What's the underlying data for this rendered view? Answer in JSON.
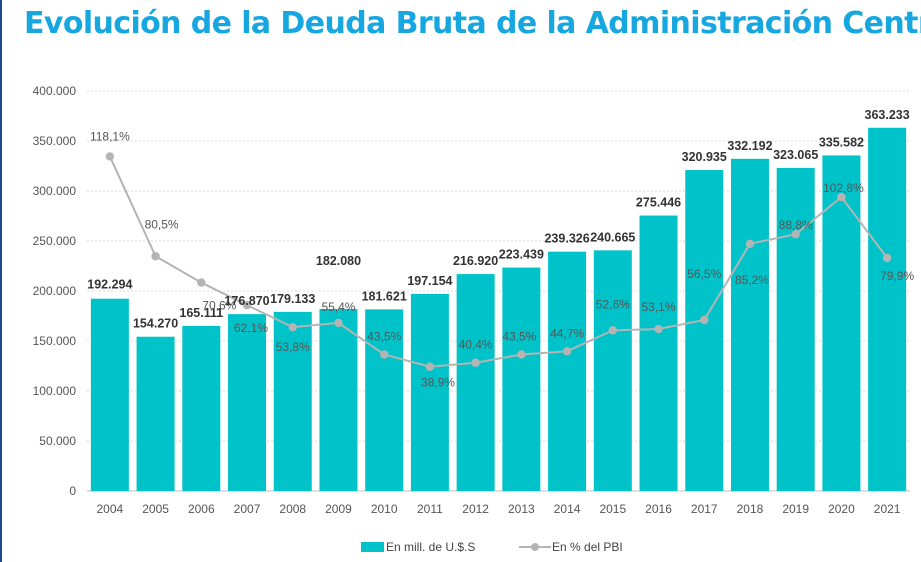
{
  "title": "Evolución de la Deuda Bruta de la Administración Central",
  "colors": {
    "bar": "#00c3c9",
    "line": "#b4b4b4",
    "title": "#17a7e0",
    "grid": "#d9d9d9"
  },
  "chart_data": {
    "type": "bar",
    "title": "Evolución de la Deuda Bruta de la Administración Central",
    "categories": [
      "2004",
      "2005",
      "2006",
      "2007",
      "2008",
      "2009",
      "2010",
      "2011",
      "2012",
      "2013",
      "2014",
      "2015",
      "2016",
      "2017",
      "2018",
      "2019",
      "2020",
      "2021"
    ],
    "ylim": [
      0,
      400000
    ],
    "y_ticks": [
      0,
      50000,
      100000,
      150000,
      200000,
      250000,
      300000,
      350000,
      400000
    ],
    "y_tick_labels": [
      "0",
      "50.000",
      "100.000",
      "150.000",
      "200.000",
      "250.000",
      "300.000",
      "350.000",
      "400.000"
    ],
    "grid": true,
    "legend_position": "bottom",
    "series": [
      {
        "name": "En mill. de U.$.S",
        "type": "bar",
        "values": [
          192294,
          154270,
          165111,
          176870,
          179133,
          182080,
          181621,
          197154,
          216920,
          223439,
          239326,
          240665,
          275446,
          320935,
          332192,
          323065,
          335582,
          363233
        ],
        "labels": [
          "192.294",
          "154.270",
          "165.111",
          "176.870",
          "179.133",
          "182.080",
          "181.621",
          "197.154",
          "216.920",
          "223.439",
          "239.326",
          "240.665",
          "275.446",
          "320.935",
          "332.192",
          "323.065",
          "335.582",
          "363.233"
        ]
      },
      {
        "name": "En % del PBI",
        "type": "line",
        "values": [
          118.1,
          80.5,
          70.6,
          62.1,
          53.8,
          55.4,
          43.5,
          38.9,
          40.4,
          43.5,
          44.7,
          52.6,
          53.1,
          56.5,
          85.2,
          88.8,
          102.8,
          79.9
        ],
        "labels": [
          "118,1%",
          "80,5%",
          "70,6%",
          "62,1%",
          "53,8%",
          "55,4%",
          "43,5%",
          "38,9%",
          "40,4%",
          "43,5%",
          "44,7%",
          "52,6%",
          "53,1%",
          "56,5%",
          "85,2%",
          "88,8%",
          "102,8%",
          "79,9%"
        ]
      }
    ]
  }
}
